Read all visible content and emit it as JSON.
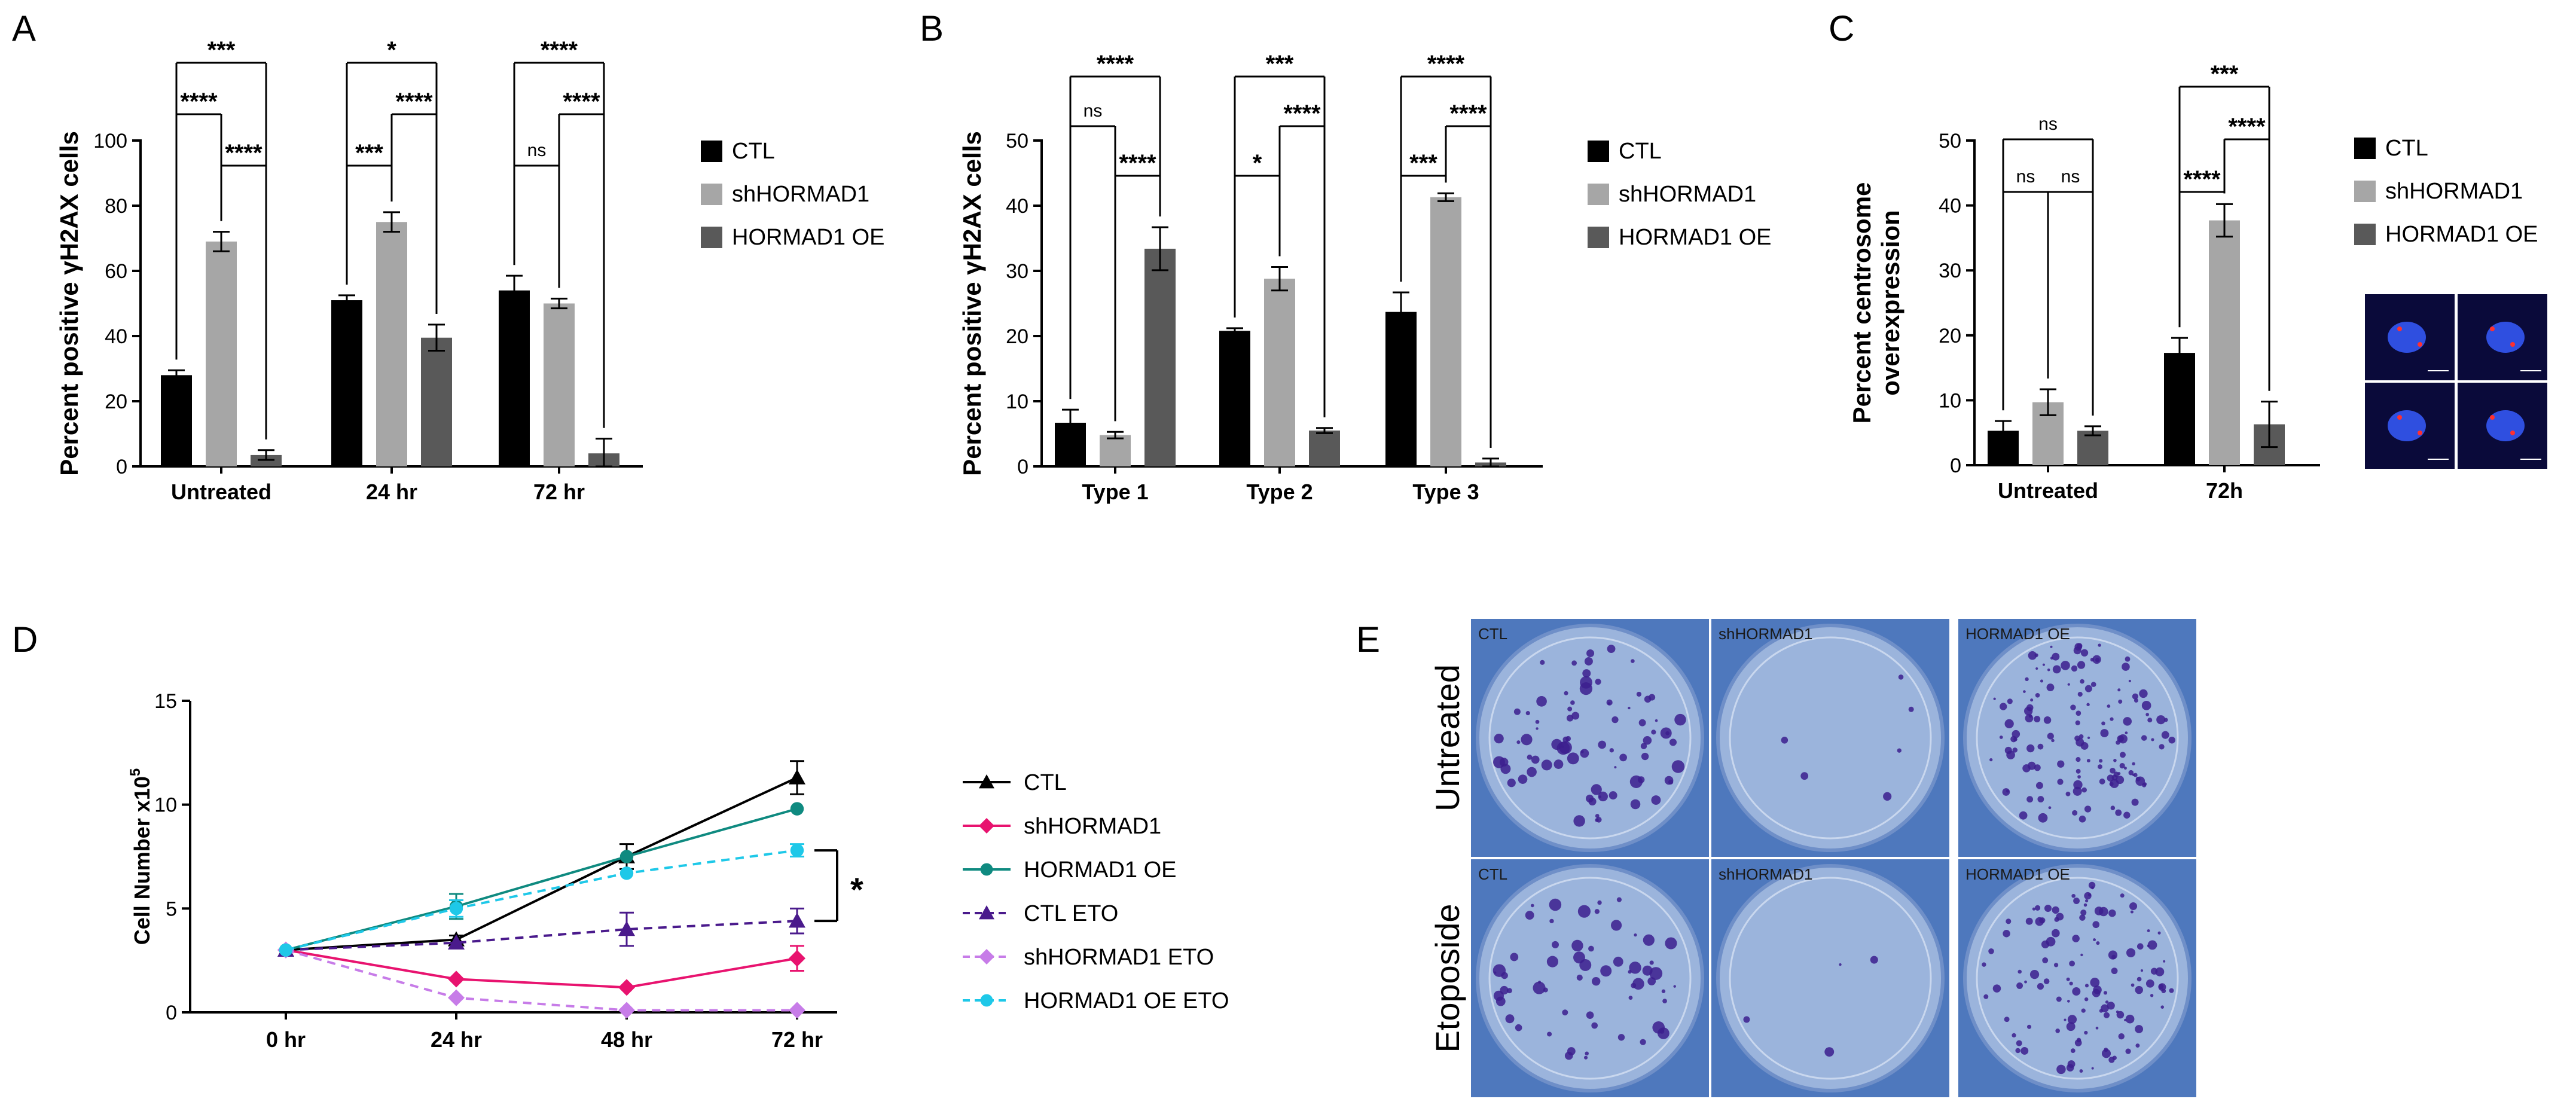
{
  "chart_data": [
    {
      "panel": "A",
      "type": "bar",
      "categories": [
        "Untreated",
        "24 hr",
        "72 hr"
      ],
      "series": [
        {
          "name": "CTL",
          "color": "#000000",
          "values": [
            28,
            51,
            54
          ],
          "errors": [
            1.5,
            1.5,
            4.5
          ]
        },
        {
          "name": "shHORMAD1",
          "color": "#a6a6a6",
          "values": [
            69,
            75,
            50
          ],
          "errors": [
            3,
            3,
            1.5
          ]
        },
        {
          "name": "HORMAD1 OE",
          "color": "#595959",
          "values": [
            3.5,
            39.5,
            4
          ],
          "errors": [
            1.5,
            4,
            4.5
          ]
        }
      ],
      "ylabel": "Percent positive γH2AX cells",
      "ylim": [
        0,
        100
      ],
      "yticks": [
        0,
        20,
        40,
        60,
        80,
        100
      ],
      "brackets": [
        {
          "cat": 0,
          "a": 0,
          "b": 1,
          "level": 1,
          "label": "****"
        },
        {
          "cat": 0,
          "a": 0,
          "b": 2,
          "level": 2,
          "label": "***"
        },
        {
          "cat": 0,
          "a": 1,
          "b": 2,
          "level": 0,
          "label": "****"
        },
        {
          "cat": 1,
          "a": 0,
          "b": 1,
          "level": 0,
          "label": "***"
        },
        {
          "cat": 1,
          "a": 1,
          "b": 2,
          "level": 1,
          "label": "****"
        },
        {
          "cat": 1,
          "a": 0,
          "b": 2,
          "level": 2,
          "label": "*"
        },
        {
          "cat": 2,
          "a": 0,
          "b": 1,
          "level": 0,
          "label": "ns"
        },
        {
          "cat": 2,
          "a": 1,
          "b": 2,
          "level": 1,
          "label": "****"
        },
        {
          "cat": 2,
          "a": 0,
          "b": 2,
          "level": 2,
          "label": "****"
        }
      ]
    },
    {
      "panel": "B",
      "type": "bar",
      "categories": [
        "Type 1",
        "Type 2",
        "Type 3"
      ],
      "series": [
        {
          "name": "CTL",
          "color": "#000000",
          "values": [
            6.7,
            20.8,
            23.7
          ],
          "errors": [
            2,
            0.4,
            3
          ]
        },
        {
          "name": "shHORMAD1",
          "color": "#a6a6a6",
          "values": [
            4.8,
            28.8,
            41.3
          ],
          "errors": [
            0.5,
            1.8,
            0.6
          ]
        },
        {
          "name": "HORMAD1 OE",
          "color": "#595959",
          "values": [
            33.4,
            5.5,
            0.6
          ],
          "errors": [
            3.3,
            0.4,
            0.6
          ]
        }
      ],
      "ylabel": "Percent positive γH2AX cells",
      "ylim": [
        0,
        50
      ],
      "yticks": [
        0,
        10,
        20,
        30,
        40,
        50
      ],
      "brackets": [
        {
          "cat": 0,
          "a": 0,
          "b": 1,
          "level": 1,
          "label": "ns"
        },
        {
          "cat": 0,
          "a": 1,
          "b": 2,
          "level": 0,
          "label": "****"
        },
        {
          "cat": 0,
          "a": 0,
          "b": 2,
          "level": 2,
          "label": "****"
        },
        {
          "cat": 1,
          "a": 0,
          "b": 1,
          "level": 0,
          "label": "*"
        },
        {
          "cat": 1,
          "a": 1,
          "b": 2,
          "level": 1,
          "label": "****"
        },
        {
          "cat": 1,
          "a": 0,
          "b": 2,
          "level": 2,
          "label": "***"
        },
        {
          "cat": 2,
          "a": 0,
          "b": 1,
          "level": 0,
          "label": "***"
        },
        {
          "cat": 2,
          "a": 1,
          "b": 2,
          "level": 1,
          "label": "****"
        },
        {
          "cat": 2,
          "a": 0,
          "b": 2,
          "level": 2,
          "label": "****"
        }
      ]
    },
    {
      "panel": "C",
      "type": "bar",
      "categories": [
        "Untreated",
        "72h"
      ],
      "series": [
        {
          "name": "CTL",
          "color": "#000000",
          "values": [
            5.3,
            17.3
          ],
          "errors": [
            1.5,
            2.3
          ]
        },
        {
          "name": "shHORMAD1",
          "color": "#a6a6a6",
          "values": [
            9.7,
            37.7
          ],
          "errors": [
            2,
            2.5
          ]
        },
        {
          "name": "HORMAD1 OE",
          "color": "#595959",
          "values": [
            5.3,
            6.3
          ],
          "errors": [
            0.7,
            3.5
          ]
        }
      ],
      "ylabel": "Percent centrosome overexpression",
      "ylabel_lines": [
        "Percent centrosome",
        "overexpression"
      ],
      "ylim": [
        0,
        50
      ],
      "yticks": [
        0,
        10,
        20,
        30,
        40,
        50
      ],
      "brackets": [
        {
          "cat": 0,
          "a": 0,
          "b": 1,
          "level": 0,
          "label": "ns"
        },
        {
          "cat": 0,
          "a": 1,
          "b": 2,
          "level": 0,
          "label": "ns"
        },
        {
          "cat": 0,
          "a": 0,
          "b": 2,
          "level": 1,
          "label": "ns"
        },
        {
          "cat": 1,
          "a": 0,
          "b": 1,
          "level": 0,
          "label": "****"
        },
        {
          "cat": 1,
          "a": 1,
          "b": 2,
          "level": 1,
          "label": "****"
        },
        {
          "cat": 1,
          "a": 0,
          "b": 2,
          "level": 2,
          "label": "***"
        }
      ]
    },
    {
      "panel": "D",
      "type": "line",
      "x": [
        "0 hr",
        "24 hr",
        "48 hr",
        "72 hr"
      ],
      "series": [
        {
          "name": "CTL",
          "color": "#000000",
          "marker": "triangle",
          "dashed": false,
          "values": [
            3,
            3.5,
            7.5,
            11.3
          ],
          "errors": [
            0,
            0.2,
            0.6,
            0.8
          ]
        },
        {
          "name": "shHORMAD1",
          "color": "#e8136f",
          "marker": "diamond",
          "dashed": false,
          "values": [
            3,
            1.6,
            1.2,
            2.6
          ],
          "errors": [
            0,
            0,
            0,
            0.6
          ]
        },
        {
          "name": "HORMAD1 OE",
          "color": "#0f8a80",
          "marker": "circle",
          "dashed": false,
          "values": [
            3,
            5.1,
            7.5,
            9.8
          ],
          "errors": [
            0,
            0.6,
            0,
            0
          ]
        },
        {
          "name": "CTL ETO",
          "color": "#4a1a8c",
          "marker": "triangle",
          "dashed": true,
          "values": [
            3,
            3.35,
            4,
            4.4
          ],
          "errors": [
            0,
            0,
            0.8,
            0.6
          ]
        },
        {
          "name": "shHORMAD1 ETO",
          "color": "#c77ce8",
          "marker": "diamond",
          "dashed": true,
          "values": [
            3,
            0.7,
            0.1,
            0.1
          ],
          "errors": [
            0,
            0,
            0,
            0
          ]
        },
        {
          "name": "HORMAD1 OE ETO",
          "color": "#1ec8e8",
          "marker": "circle",
          "dashed": true,
          "values": [
            3,
            5,
            6.7,
            7.8
          ],
          "errors": [
            0,
            0.4,
            0,
            0.3
          ]
        }
      ],
      "ylabel": "Cell Number x10",
      "ylabel_sup": "5",
      "ylim": [
        0,
        15
      ],
      "yticks": [
        0,
        5,
        10,
        15
      ],
      "annotation": "*"
    }
  ],
  "panel_letters": [
    "A",
    "B",
    "C",
    "D",
    "E"
  ],
  "panel_e": {
    "row_labels": [
      "Untreated",
      "Etoposide"
    ],
    "col_labels": [
      "CTL",
      "shHORMAD1",
      "HORMAD1 OE"
    ],
    "plate_color": "#4e78bd",
    "colony_color": "#3c1f8e"
  }
}
